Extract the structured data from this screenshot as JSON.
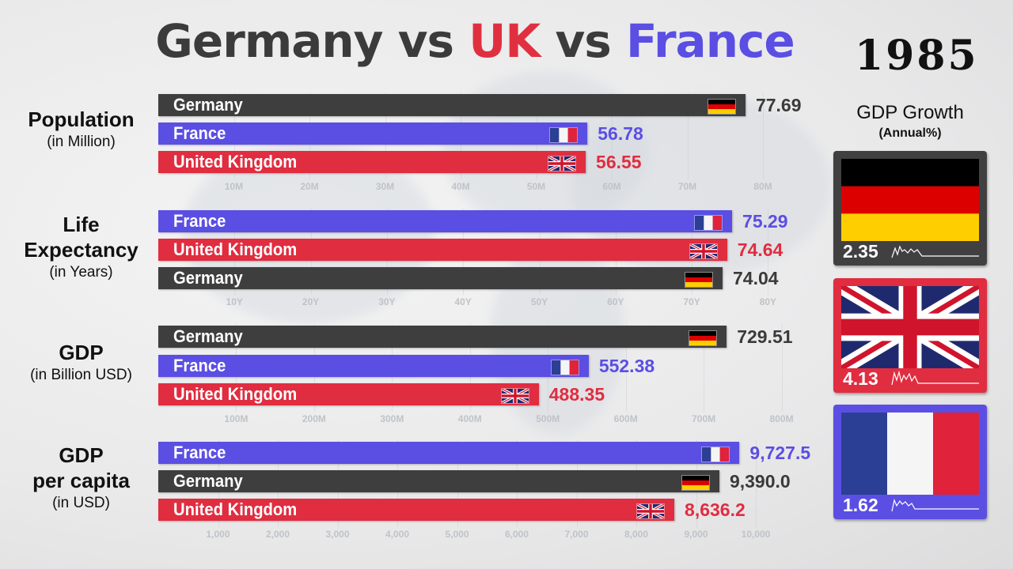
{
  "title": {
    "part1": "Germany",
    "vs1": "vs",
    "part2": "UK",
    "vs2": "vs",
    "part3": "France"
  },
  "year": "1985",
  "colors": {
    "germany": "#3e3e3e",
    "france": "#5b4ee3",
    "uk": "#e02d40",
    "tick": "#bfc3c8"
  },
  "gdp_growth": {
    "title": "GDP Growth",
    "subtitle": "(Annual%)",
    "cards": [
      {
        "country": "germany",
        "flag": "germany-flag-icon",
        "value": "2.35",
        "color": "#404040"
      },
      {
        "country": "uk",
        "flag": "uk-flag-icon",
        "value": "4.13",
        "color": "#e02d40"
      },
      {
        "country": "france",
        "flag": "france-flag-icon",
        "value": "1.62",
        "color": "#5b4ee3"
      }
    ]
  },
  "chart_data": [
    {
      "type": "bar",
      "title": "Population",
      "subtitle": "(in Million)",
      "unit": "M",
      "xlim": [
        0,
        80
      ],
      "ticks": [
        "10M",
        "20M",
        "30M",
        "40M",
        "50M",
        "60M",
        "70M",
        "80M"
      ],
      "tick_values": [
        10,
        20,
        30,
        40,
        50,
        60,
        70,
        80
      ],
      "bars": [
        {
          "name": "Germany",
          "country": "germany",
          "value": 77.69,
          "label": "77.69"
        },
        {
          "name": "France",
          "country": "france",
          "value": 56.78,
          "label": "56.78"
        },
        {
          "name": "United Kingdom",
          "country": "uk",
          "value": 56.55,
          "label": "56.55"
        }
      ]
    },
    {
      "type": "bar",
      "title": "Life Expectancy",
      "title_lines": [
        "Life",
        "Expectancy"
      ],
      "subtitle": "(in Years)",
      "unit": "Y",
      "xlim": [
        0,
        80
      ],
      "ticks": [
        "10Y",
        "20Y",
        "30Y",
        "40Y",
        "50Y",
        "60Y",
        "70Y",
        "80Y"
      ],
      "tick_values": [
        10,
        20,
        30,
        40,
        50,
        60,
        70,
        80
      ],
      "bars": [
        {
          "name": "France",
          "country": "france",
          "value": 75.29,
          "label": "75.29"
        },
        {
          "name": "United Kingdom",
          "country": "uk",
          "value": 74.64,
          "label": "74.64"
        },
        {
          "name": "Germany",
          "country": "germany",
          "value": 74.04,
          "label": "74.04"
        }
      ]
    },
    {
      "type": "bar",
      "title": "GDP",
      "subtitle": "(in Billion USD)",
      "unit": "M",
      "xlim": [
        0,
        800
      ],
      "ticks": [
        "100M",
        "200M",
        "300M",
        "400M",
        "500M",
        "600M",
        "700M",
        "800M"
      ],
      "tick_values": [
        100,
        200,
        300,
        400,
        500,
        600,
        700,
        800
      ],
      "bars": [
        {
          "name": "Germany",
          "country": "germany",
          "value": 729.51,
          "label": "729.51"
        },
        {
          "name": "France",
          "country": "france",
          "value": 552.38,
          "label": "552.38"
        },
        {
          "name": "United Kingdom",
          "country": "uk",
          "value": 488.35,
          "label": "488.35"
        }
      ]
    },
    {
      "type": "bar",
      "title": "GDP per capita",
      "title_lines": [
        "GDP",
        "per capita"
      ],
      "subtitle": "(in USD)",
      "unit": "",
      "xlim": [
        0,
        10000
      ],
      "ticks": [
        "1,000",
        "2,000",
        "3,000",
        "4,000",
        "5,000",
        "6,000",
        "7,000",
        "8,000",
        "9,000",
        "10,000"
      ],
      "tick_values": [
        1000,
        2000,
        3000,
        4000,
        5000,
        6000,
        7000,
        8000,
        9000,
        10000
      ],
      "bars": [
        {
          "name": "France",
          "country": "france",
          "value": 9727.5,
          "label": "9,727.5"
        },
        {
          "name": "Germany",
          "country": "germany",
          "value": 9390.0,
          "label": "9,390.0"
        },
        {
          "name": "United Kingdom",
          "country": "uk",
          "value": 8636.2,
          "label": "8,636.2"
        }
      ]
    }
  ]
}
